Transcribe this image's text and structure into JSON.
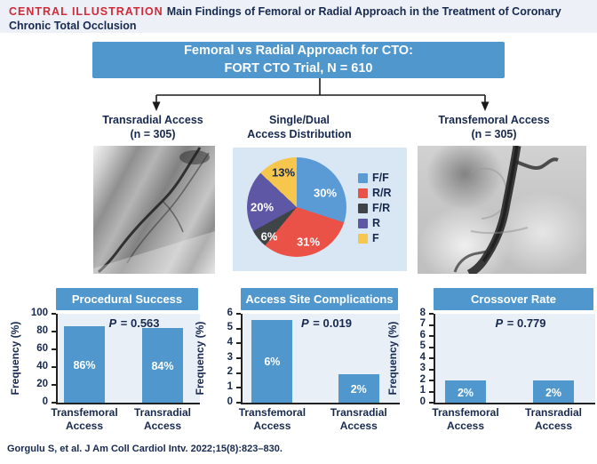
{
  "title_bar": {
    "tag": "CENTRAL ILLUSTRATION",
    "title": "Main Findings of Femoral or Radial Approach in the Treatment of Coronary Chronic Total Occlusion"
  },
  "flow": {
    "root_box": {
      "line1": "Femoral vs Radial Approach for CTO:",
      "line2": "FORT CTO Trial, N = 610"
    },
    "left_branch": {
      "line1": "Transradial Access",
      "line2": "(n = 305)"
    },
    "middle_label": {
      "line1": "Single/Dual",
      "line2": "Access Distribution"
    },
    "right_branch": {
      "line1": "Transfemoral Access",
      "line2": "(n = 305)"
    }
  },
  "images": {
    "left": "transradial-angiogram",
    "right": "transfemoral-angiogram"
  },
  "colors": {
    "accent_blue": "#4f97cd",
    "title_red": "#cf2b39",
    "navy_text": "#17294e",
    "pie_panel_bg": "#d9e6f3",
    "plot_bg": "#e9eff7"
  },
  "chart_data": [
    {
      "type": "pie",
      "title": "Single/Dual Access Distribution",
      "labels": [
        "F/F",
        "R/R",
        "F/R",
        "R",
        "F"
      ],
      "values": [
        30,
        31,
        6,
        20,
        13
      ],
      "slice_labels": [
        "30%",
        "31%",
        "6%",
        "20%",
        "13%"
      ],
      "colors": [
        "#5b9bd5",
        "#ea5247",
        "#3f4447",
        "#5e57a5",
        "#f7c64d"
      ],
      "legend_position": "right"
    },
    {
      "type": "bar",
      "title": "Procedural Success",
      "p_value": "P = 0.563",
      "ylabel": "Frequency (%)",
      "ylim": [
        0,
        100
      ],
      "ytick_step": 20,
      "categories": [
        "Transfemoral Access",
        "Transradial Access"
      ],
      "values": [
        86,
        84
      ],
      "bar_labels": [
        "86%",
        "84%"
      ]
    },
    {
      "type": "bar",
      "title": "Access Site Complications",
      "p_value": "P = 0.019",
      "ylabel": "Frequency (%)",
      "ylim": [
        0,
        6
      ],
      "ytick_step": 1,
      "categories": [
        "Transfemoral Access",
        "Transradial Access"
      ],
      "values": [
        5.6,
        1.95
      ],
      "bar_labels": [
        "6%",
        "2%"
      ]
    },
    {
      "type": "bar",
      "title": "Crossover Rate",
      "p_value": "P = 0.779",
      "ylabel": "Frequency (%)",
      "ylim": [
        0,
        8
      ],
      "ytick_step": 1,
      "categories": [
        "Transfemoral Access",
        "Transradial Access"
      ],
      "values": [
        2,
        2
      ],
      "bar_labels": [
        "2%",
        "2%"
      ]
    }
  ],
  "footer": {
    "citation": "Gorgulu S, et al. J Am Coll Cardiol Intv. 2022;15(8):823–830."
  }
}
